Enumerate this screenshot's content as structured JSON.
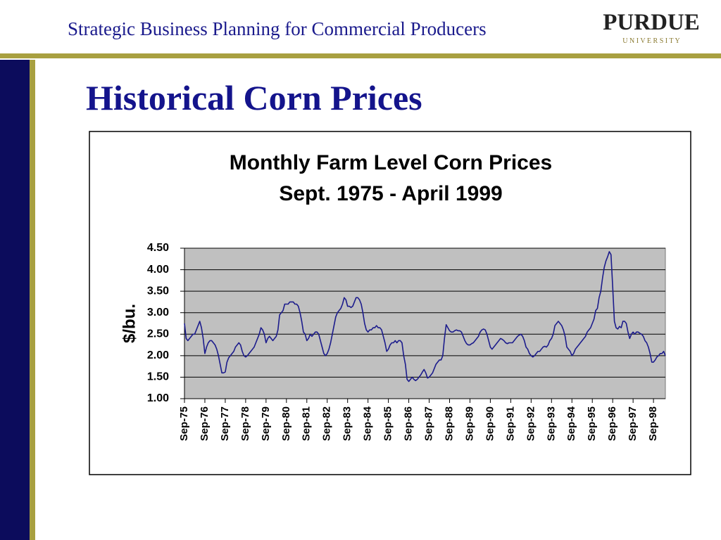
{
  "slide": {
    "header": "Strategic Business Planning for Commercial Producers",
    "logo": {
      "name": "PURDUE",
      "sub": "U N I V E R S I T Y"
    },
    "title": "Historical Corn Prices"
  },
  "chart_data": {
    "type": "line",
    "title": "Monthly Farm Level Corn Prices",
    "subtitle": "Sept. 1975 - April 1999",
    "y_label": "$/bu.",
    "color": "#1c1c8c",
    "grid": true,
    "ylim": [
      1.0,
      4.5
    ],
    "yticks": [
      {
        "value": 1.0,
        "label": "1.00"
      },
      {
        "value": 1.5,
        "label": "1.50"
      },
      {
        "value": 2.0,
        "label": "2.00"
      },
      {
        "value": 2.5,
        "label": "2.50"
      },
      {
        "value": 3.0,
        "label": "3.00"
      },
      {
        "value": 3.5,
        "label": "3.50"
      },
      {
        "value": 4.0,
        "label": "4.00"
      },
      {
        "value": 4.5,
        "label": "4.50"
      }
    ],
    "categories": [
      "Sep-75",
      null,
      null,
      null,
      null,
      null,
      null,
      null,
      null,
      null,
      null,
      null,
      "Sep-76",
      null,
      null,
      null,
      null,
      null,
      null,
      null,
      null,
      null,
      null,
      null,
      "Sep-77",
      null,
      null,
      null,
      null,
      null,
      null,
      null,
      null,
      null,
      null,
      null,
      "Sep-78",
      null,
      null,
      null,
      null,
      null,
      null,
      null,
      null,
      null,
      null,
      null,
      "Sep-79",
      null,
      null,
      null,
      null,
      null,
      null,
      null,
      null,
      null,
      null,
      null,
      "Sep-80",
      null,
      null,
      null,
      null,
      null,
      null,
      null,
      null,
      null,
      null,
      null,
      "Sep-81",
      null,
      null,
      null,
      null,
      null,
      null,
      null,
      null,
      null,
      null,
      null,
      "Sep-82",
      null,
      null,
      null,
      null,
      null,
      null,
      null,
      null,
      null,
      null,
      null,
      "Sep-83",
      null,
      null,
      null,
      null,
      null,
      null,
      null,
      null,
      null,
      null,
      null,
      "Sep-84",
      null,
      null,
      null,
      null,
      null,
      null,
      null,
      null,
      null,
      null,
      null,
      "Sep-85",
      null,
      null,
      null,
      null,
      null,
      null,
      null,
      null,
      null,
      null,
      null,
      "Sep-86",
      null,
      null,
      null,
      null,
      null,
      null,
      null,
      null,
      null,
      null,
      null,
      "Sep-87",
      null,
      null,
      null,
      null,
      null,
      null,
      null,
      null,
      null,
      null,
      null,
      "Sep-88",
      null,
      null,
      null,
      null,
      null,
      null,
      null,
      null,
      null,
      null,
      null,
      "Sep-89",
      null,
      null,
      null,
      null,
      null,
      null,
      null,
      null,
      null,
      null,
      null,
      "Sep-90",
      null,
      null,
      null,
      null,
      null,
      null,
      null,
      null,
      null,
      null,
      null,
      "Sep-91",
      null,
      null,
      null,
      null,
      null,
      null,
      null,
      null,
      null,
      null,
      null,
      "Sep-92",
      null,
      null,
      null,
      null,
      null,
      null,
      null,
      null,
      null,
      null,
      null,
      "Sep-93",
      null,
      null,
      null,
      null,
      null,
      null,
      null,
      null,
      null,
      null,
      null,
      "Sep-94",
      null,
      null,
      null,
      null,
      null,
      null,
      null,
      null,
      null,
      null,
      null,
      "Sep-95",
      null,
      null,
      null,
      null,
      null,
      null,
      null,
      null,
      null,
      null,
      null,
      "Sep-96",
      null,
      null,
      null,
      null,
      null,
      null,
      null,
      null,
      null,
      null,
      null,
      "Sep-97",
      null,
      null,
      null,
      null,
      null,
      null,
      null,
      null,
      null,
      null,
      null,
      "Sep-98",
      null,
      null,
      null,
      null,
      null,
      null,
      null
    ],
    "values": [
      2.75,
      2.4,
      2.35,
      2.4,
      2.45,
      2.5,
      2.5,
      2.6,
      2.7,
      2.8,
      2.65,
      2.4,
      2.05,
      2.2,
      2.3,
      2.35,
      2.35,
      2.3,
      2.25,
      2.15,
      2.0,
      1.8,
      1.6,
      1.6,
      1.62,
      1.85,
      1.95,
      2.0,
      2.05,
      2.1,
      2.2,
      2.25,
      2.3,
      2.25,
      2.1,
      2.0,
      1.97,
      2.0,
      2.05,
      2.1,
      2.15,
      2.2,
      2.3,
      2.4,
      2.5,
      2.65,
      2.6,
      2.5,
      2.3,
      2.4,
      2.45,
      2.4,
      2.35,
      2.4,
      2.45,
      2.6,
      2.95,
      3.0,
      3.05,
      3.2,
      3.2,
      3.2,
      3.25,
      3.25,
      3.25,
      3.2,
      3.2,
      3.15,
      3.0,
      2.8,
      2.55,
      2.5,
      2.35,
      2.4,
      2.5,
      2.45,
      2.5,
      2.55,
      2.55,
      2.5,
      2.35,
      2.2,
      2.05,
      2.0,
      2.05,
      2.15,
      2.3,
      2.5,
      2.7,
      2.9,
      3.0,
      3.05,
      3.1,
      3.2,
      3.35,
      3.3,
      3.15,
      3.15,
      3.12,
      3.15,
      3.25,
      3.35,
      3.35,
      3.3,
      3.2,
      3.0,
      2.75,
      2.6,
      2.55,
      2.6,
      2.6,
      2.65,
      2.65,
      2.7,
      2.65,
      2.65,
      2.6,
      2.45,
      2.3,
      2.1,
      2.15,
      2.25,
      2.3,
      2.3,
      2.35,
      2.3,
      2.35,
      2.35,
      2.3,
      2.0,
      1.8,
      1.45,
      1.4,
      1.45,
      1.5,
      1.45,
      1.42,
      1.45,
      1.5,
      1.55,
      1.62,
      1.68,
      1.6,
      1.48,
      1.5,
      1.55,
      1.6,
      1.7,
      1.8,
      1.85,
      1.9,
      1.9,
      2.0,
      2.4,
      2.72,
      2.65,
      2.58,
      2.55,
      2.55,
      2.58,
      2.6,
      2.58,
      2.58,
      2.55,
      2.45,
      2.35,
      2.28,
      2.25,
      2.25,
      2.28,
      2.3,
      2.35,
      2.4,
      2.45,
      2.55,
      2.6,
      2.62,
      2.6,
      2.5,
      2.35,
      2.2,
      2.15,
      2.2,
      2.25,
      2.3,
      2.35,
      2.4,
      2.38,
      2.35,
      2.3,
      2.28,
      2.3,
      2.3,
      2.3,
      2.35,
      2.4,
      2.45,
      2.48,
      2.5,
      2.45,
      2.35,
      2.2,
      2.15,
      2.05,
      2.0,
      1.97,
      2.0,
      2.05,
      2.1,
      2.1,
      2.15,
      2.2,
      2.22,
      2.2,
      2.25,
      2.35,
      2.4,
      2.5,
      2.7,
      2.75,
      2.8,
      2.75,
      2.7,
      2.6,
      2.45,
      2.2,
      2.15,
      2.1,
      2.0,
      2.05,
      2.15,
      2.2,
      2.25,
      2.3,
      2.35,
      2.4,
      2.45,
      2.55,
      2.6,
      2.65,
      2.75,
      2.85,
      3.05,
      3.1,
      3.35,
      3.5,
      3.8,
      4.05,
      4.2,
      4.3,
      4.42,
      4.35,
      3.6,
      2.8,
      2.65,
      2.62,
      2.68,
      2.65,
      2.8,
      2.8,
      2.75,
      2.55,
      2.4,
      2.5,
      2.55,
      2.5,
      2.55,
      2.55,
      2.52,
      2.5,
      2.45,
      2.35,
      2.3,
      2.2,
      2.05,
      1.85,
      1.85,
      1.9,
      1.97,
      2.0,
      2.05,
      2.05,
      2.1,
      2.0
    ]
  }
}
